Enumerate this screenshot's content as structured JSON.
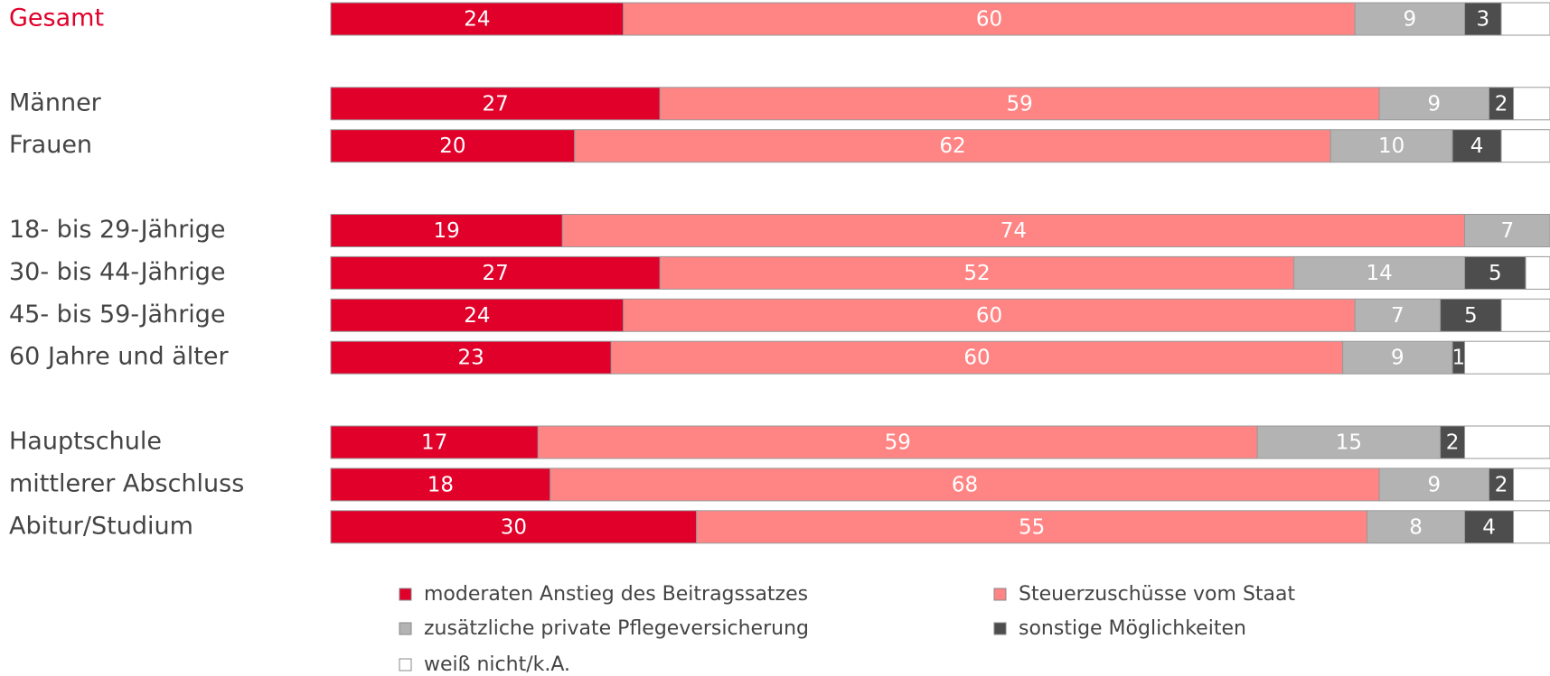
{
  "chart_data": {
    "type": "stacked_bar_horizontal",
    "categories": [
      "Gesamt",
      null,
      "Männer",
      "Frauen",
      null,
      "18- bis 29-Jährige",
      "30- bis 44-Jährige",
      "45- bis 59-Jährige",
      "60 Jahre und älter",
      null,
      "Hauptschule",
      "mittlerer Abschluss",
      "Abitur/Studium"
    ],
    "series": [
      {
        "name": "moderaten Anstieg des Beitragssatzes",
        "color": "#e0002a",
        "values": [
          24,
          null,
          27,
          20,
          null,
          19,
          27,
          24,
          23,
          null,
          17,
          18,
          30
        ]
      },
      {
        "name": "Steuerzuschüsse vom Staat",
        "color": "#ff8585",
        "values": [
          60,
          null,
          59,
          62,
          null,
          74,
          52,
          60,
          60,
          null,
          59,
          68,
          55
        ]
      },
      {
        "name": "zusätzliche private Pflegeversicherung",
        "color": "#b3b3b3",
        "values": [
          9,
          null,
          9,
          10,
          null,
          7,
          14,
          7,
          9,
          null,
          15,
          9,
          8
        ]
      },
      {
        "name": "sonstige Möglichkeiten",
        "color": "#4d4d4d",
        "values": [
          3,
          null,
          2,
          4,
          null,
          null,
          5,
          5,
          1,
          null,
          2,
          2,
          4
        ]
      },
      {
        "name": "weiß nicht/k.A.",
        "color": "#ffffff",
        "values": [
          4,
          null,
          3,
          4,
          null,
          null,
          2,
          4,
          7,
          null,
          7,
          3,
          3
        ]
      }
    ],
    "xlim": [
      0,
      100
    ],
    "legend": "bottom"
  }
}
